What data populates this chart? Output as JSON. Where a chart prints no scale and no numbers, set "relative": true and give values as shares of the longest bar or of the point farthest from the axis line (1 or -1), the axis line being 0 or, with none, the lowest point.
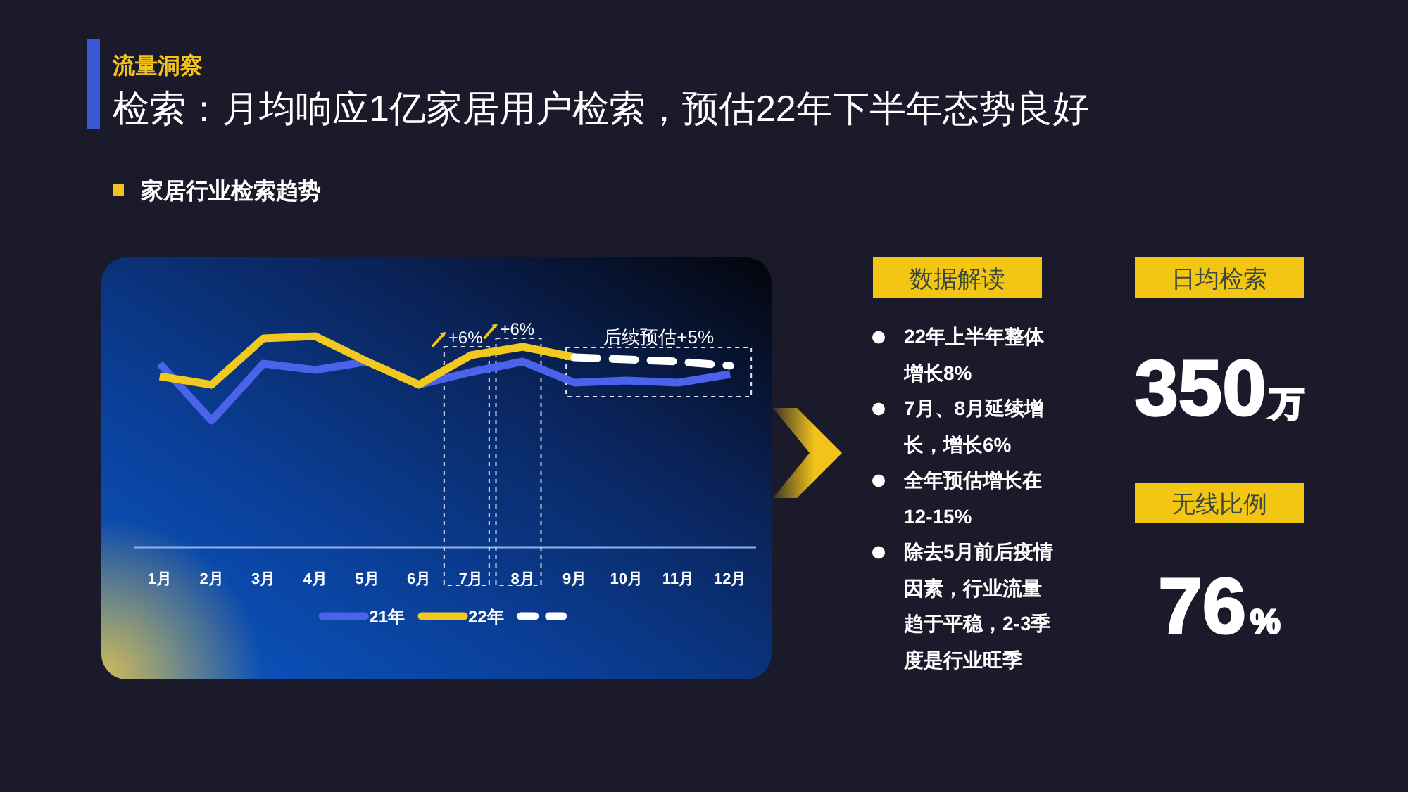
{
  "chart_data": [
    {
      "type": "other",
      "title": "流量洞察",
      "subtitle": "检索：月均响应1亿家居用户检索，预估22年下半年态势良好"
    },
    {
      "type": "line",
      "title": "家居行业检索趋势",
      "categories": [
        "1月",
        "2月",
        "3月",
        "4月",
        "5月",
        "6月",
        "7月",
        "8月",
        "9月",
        "10月",
        "11月",
        "12月"
      ],
      "relative": true,
      "legend": "bottom",
      "series": [
        {
          "name": "21年",
          "color": "#4a63ea",
          "values": [
            0.87,
            0.6,
            0.87,
            0.84,
            0.88,
            0.77,
            0.83,
            0.88,
            0.78,
            0.79,
            0.78,
            0.82
          ]
        },
        {
          "name": "22年",
          "color": "#f2c91f",
          "values": [
            0.81,
            0.77,
            0.99,
            1,
            0.88,
            0.77,
            0.91,
            0.95,
            0.9,
            null,
            null,
            null
          ]
        },
        {
          "color": "#ffffff",
          "line_style": "dashed",
          "values": [
            null,
            null,
            null,
            null,
            null,
            null,
            null,
            null,
            0.9,
            0.89,
            0.88,
            0.86
          ]
        }
      ],
      "annotations": [
        {
          "text": "+6%",
          "x": "7月",
          "y": 0.91
        },
        {
          "text": "+6%",
          "x": "8月",
          "y": 0.95
        },
        "后续预估+5%"
      ]
    },
    {
      "type": "other",
      "title": "数据解读",
      "annotations": [
        "22年上半年整体增长8%",
        "7月、8月延续增长，增长6%",
        "全年预估增长在12-15%",
        "除去5月前后疫情因素，行业流量趋于平稳，2-3季度是行业旺季"
      ]
    },
    {
      "type": "other",
      "title": "日均检索",
      "annotations": [
        "350万"
      ]
    },
    {
      "type": "other",
      "title": "无线比例",
      "annotations": [
        "76%"
      ]
    }
  ]
}
